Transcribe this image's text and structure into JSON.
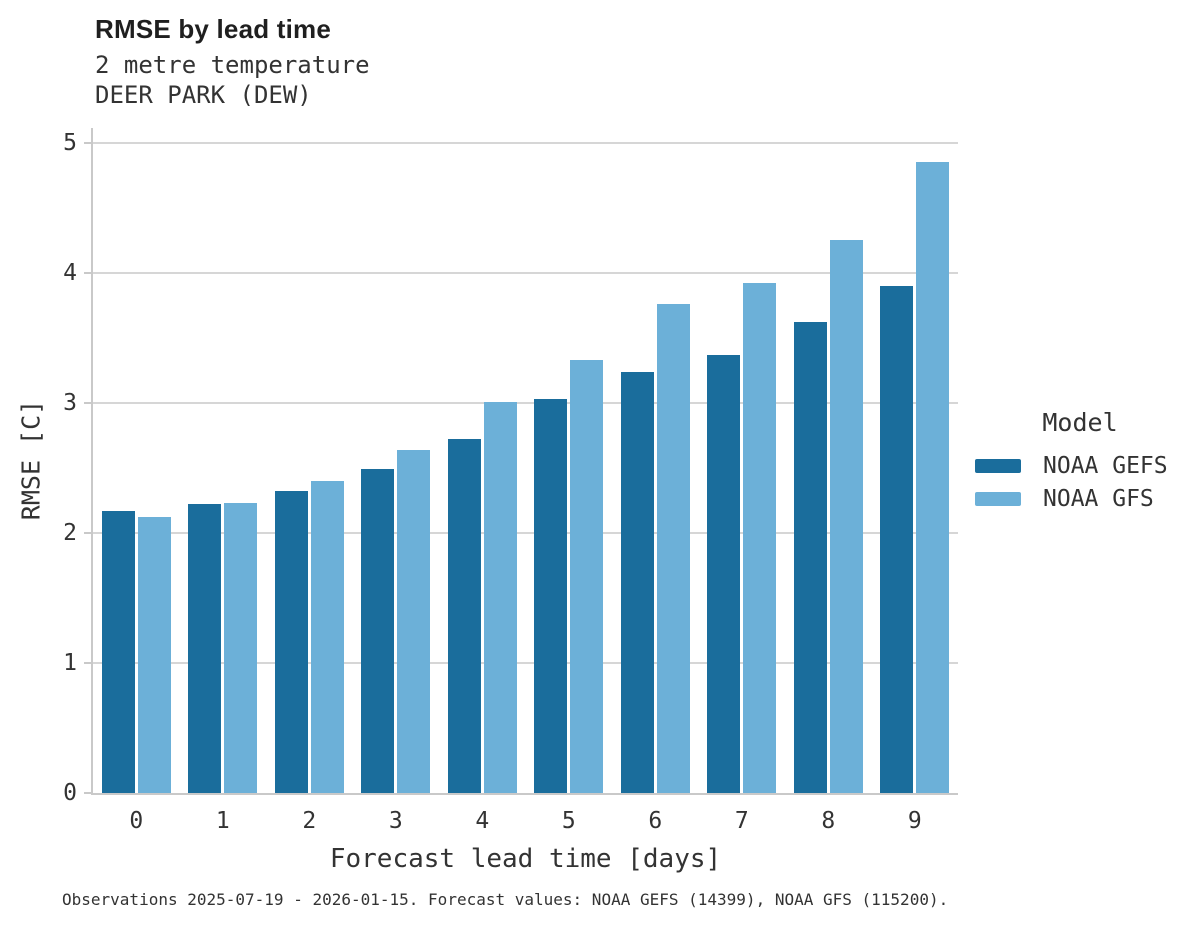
{
  "header": {
    "title": "RMSE by lead time",
    "subtitle": "2 metre temperature",
    "station": "DEER PARK (DEW)"
  },
  "chart_data": {
    "type": "bar",
    "title": "RMSE by lead time",
    "subtitle": "2 metre temperature",
    "station": "DEER PARK (DEW)",
    "categories": [
      "0",
      "1",
      "2",
      "3",
      "4",
      "5",
      "6",
      "7",
      "8",
      "9"
    ],
    "series": [
      {
        "name": "NOAA GEFS",
        "color": "#1a6d9c",
        "values": [
          2.17,
          2.22,
          2.32,
          2.49,
          2.72,
          3.03,
          3.24,
          3.37,
          3.62,
          3.9
        ]
      },
      {
        "name": "NOAA GFS",
        "color": "#6cb0d8",
        "values": [
          2.12,
          2.23,
          2.4,
          2.64,
          3.01,
          3.33,
          3.76,
          3.92,
          4.25,
          4.85
        ]
      }
    ],
    "xlabel": "Forecast lead time [days]",
    "ylabel": "RMSE [C]",
    "ylim": [
      0,
      5
    ],
    "yticks": [
      0,
      1,
      2,
      3,
      4,
      5
    ],
    "legend_title": "Model",
    "legend_position": "right",
    "grid": "horizontal"
  },
  "footer": {
    "note": "Observations 2025-07-19 - 2026-01-15. Forecast values: NOAA GEFS (14399), NOAA GFS (115200)."
  },
  "colors": {
    "series_dark": "#1a6d9c",
    "series_light": "#6cb0d8",
    "gridline": "#d6d6d6",
    "spine": "#c9c9c9",
    "title_text": "#1f1f1f",
    "text": "#333333",
    "background": "#ffffff"
  }
}
